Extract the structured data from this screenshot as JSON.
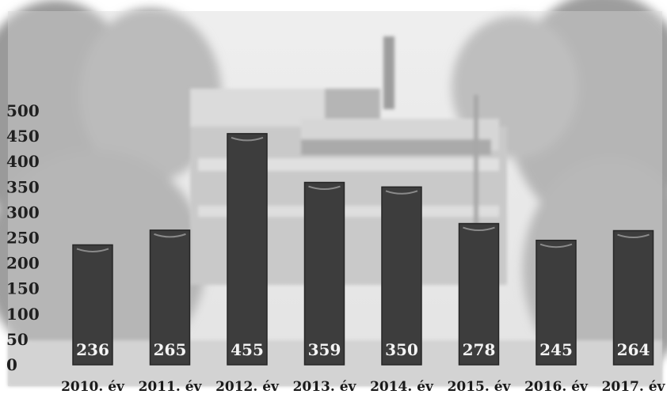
{
  "chart_data": {
    "type": "bar",
    "title": "",
    "xlabel": "",
    "ylabel": "",
    "categories": [
      "2010. év",
      "2011. év",
      "2012. év",
      "2013. év",
      "2014. év",
      "2015. év",
      "2016. év",
      "2017. év"
    ],
    "values": [
      236,
      265,
      455,
      359,
      350,
      278,
      245,
      264
    ],
    "ylim": [
      0,
      500
    ],
    "yticks": [
      0,
      50,
      100,
      150,
      200,
      250,
      300,
      350,
      400,
      450,
      500
    ],
    "grid": false,
    "legend": "none",
    "data_labels": "inside-bottom",
    "colors": {
      "bar": "#3d3d3d",
      "bar_edge": "#262626",
      "bar_cap": "#8a8a8a",
      "data_label": "#f4f4f4",
      "axis_text": "#202020"
    },
    "background": "faded photograph of a building behind trees"
  }
}
